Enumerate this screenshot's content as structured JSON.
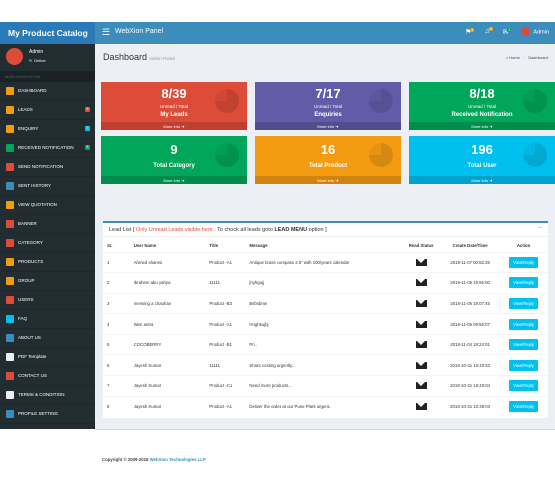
{
  "app": {
    "brand": "My Product Catalog",
    "panel_title": "WebXion Panel"
  },
  "topbar": {
    "flag_count": "1",
    "bell_count": "0",
    "mail_count": "1",
    "user_name": "Admin"
  },
  "sidebar": {
    "user": {
      "name": "Admin",
      "status": "Online"
    },
    "header": "MAIN NAVIGATION",
    "items": [
      {
        "label": "DASHBOARD",
        "icon": "dashboard-icon",
        "color": "#f39c12"
      },
      {
        "label": "LEADS",
        "icon": "leads-icon",
        "color": "#f39c12",
        "badge": "8",
        "badge_color": "#dd4b39"
      },
      {
        "label": "ENQUIRY",
        "icon": "enquiry-icon",
        "color": "#f39c12",
        "badge": "7",
        "badge_color": "#00c0ef"
      },
      {
        "label": "RECEIVED NOTIFICATION",
        "icon": "notification-icon",
        "color": "#00a65a",
        "badge": "8",
        "badge_color": "#00a65a"
      },
      {
        "label": "SEND NOTIFICATION",
        "icon": "send-notification-icon",
        "color": "#dd4b39"
      },
      {
        "label": "SENT HISTORY",
        "icon": "paper-plane-icon",
        "color": "#3c8dbc"
      },
      {
        "label": "VIEW QUOTATION",
        "icon": "quotation-icon",
        "color": "#f39c12"
      },
      {
        "label": "BANNER",
        "icon": "banner-icon",
        "color": "#dd4b39"
      },
      {
        "label": "CATEGORY",
        "icon": "category-icon",
        "color": "#dd4b39"
      },
      {
        "label": "PRODUCTS",
        "icon": "products-icon",
        "color": "#f39c12"
      },
      {
        "label": "GROUP",
        "icon": "group-icon",
        "color": "#f39c12"
      },
      {
        "label": "USERS",
        "icon": "users-icon",
        "color": "#dd4b39"
      },
      {
        "label": "FAQ",
        "icon": "faq-icon",
        "color": "#00c0ef"
      },
      {
        "label": "ABOUT US",
        "icon": "about-icon",
        "color": "#3c8dbc"
      },
      {
        "label": "PDF Template",
        "icon": "pdf-icon",
        "color": "#ecf0f5"
      },
      {
        "label": "CONTACT US",
        "icon": "location-pin-icon",
        "color": "#dd4b39"
      },
      {
        "label": "TERMS & CONDITION",
        "icon": "terms-icon",
        "color": "#ecf0f5"
      },
      {
        "label": "PROFILE SETTING",
        "icon": "profile-icon",
        "color": "#3c8dbc"
      }
    ]
  },
  "page": {
    "title": "Dashboard",
    "subtitle": "Admin Portal",
    "breadcrumb": {
      "home": "Home",
      "current": "Dashboard"
    }
  },
  "tiles": [
    {
      "value": "8/39",
      "unit": "Unread / Total",
      "label": "My Leads",
      "footer": "More info",
      "color": "#dd4b39"
    },
    {
      "value": "7/17",
      "unit": "Unread / Total",
      "label": "Enquiries",
      "footer": "More info",
      "color": "#605ca8"
    },
    {
      "value": "8/18",
      "unit": "Unread / Total",
      "label": "Received Notification",
      "footer": "More info",
      "color": "#00a65a"
    },
    {
      "value": "9",
      "label": "Total Category",
      "footer": "More info",
      "color": "#00a65a"
    },
    {
      "value": "16",
      "label": "Total Product",
      "footer": "More info",
      "color": "#f39c12"
    },
    {
      "value": "196",
      "label": "Total User",
      "footer": "More info",
      "color": "#00c0ef"
    }
  ],
  "lead_list": {
    "title": "Lead List [",
    "note": "Only Unread Leads visible here",
    "mid": ". To chock all leads goto",
    "menu": "LEAD MENU",
    "tail": "option ]",
    "columns": [
      "Sr.",
      "User Name",
      "Title",
      "Message",
      "Read Status",
      "Create Date/Time",
      "Action"
    ],
    "action_label": "View/Reply",
    "rows": [
      {
        "sr": "1",
        "user": "Ahmed shamsi",
        "title": "Product -A1",
        "message": "Antique brass compass 2.5\" with 100/years calendar",
        "date": "2018-11-07 00:52:26"
      },
      {
        "sr": "2",
        "user": "Ibrahem abu yahya",
        "title": "11111",
        "message": "jhyhgujj",
        "date": "2018-11-05 19:55:00"
      },
      {
        "sr": "3",
        "user": "nemsing a chauhan",
        "title": "Product -B3",
        "message": "Bsbsbnw",
        "date": "2018-11-05 19:07:45"
      },
      {
        "sr": "4",
        "user": "Wen antra",
        "title": "Product -A1",
        "message": "Hnghkujbj",
        "date": "2018-11-05 09:55:07"
      },
      {
        "sr": "5",
        "user": "COCOBERRY",
        "title": "Product -B1",
        "message": "Pri..",
        "date": "2018-11-04 18:24:01"
      },
      {
        "sr": "6",
        "user": "Jayesh Kumar",
        "title": "11111",
        "message": "Share costing urgently..",
        "date": "2018-10-31 10:40:53"
      },
      {
        "sr": "7",
        "user": "Jayesh Kumar",
        "title": "Product -C1",
        "message": "Need more products...",
        "date": "2018-10-31 10:40:04"
      },
      {
        "sr": "8",
        "user": "Jayesh Kumar",
        "title": "Product -A1",
        "message": "Deliver the order at our Pune Plant urgent..",
        "date": "2018-10-31 10:39:03"
      }
    ]
  },
  "footer": {
    "copyright": "Copyright © 2009-2018",
    "company": "WebXion Technologies LLP"
  }
}
